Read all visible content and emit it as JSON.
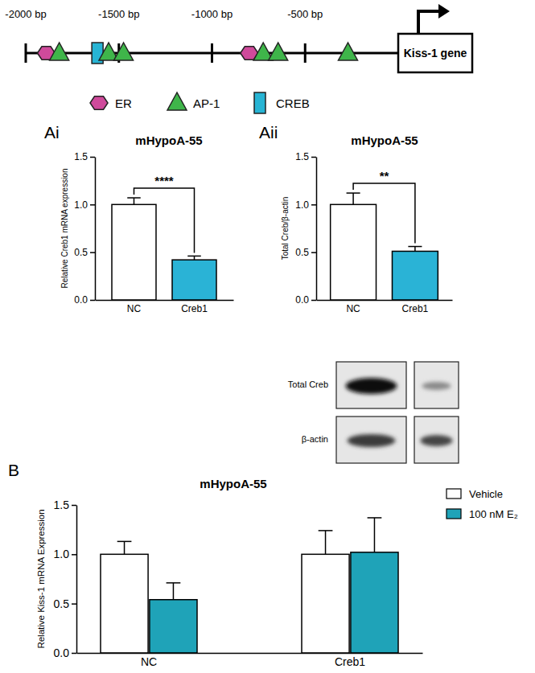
{
  "diagram": {
    "range": [
      -2000,
      0
    ],
    "ticks": [
      {
        "value": -2000,
        "label": "-2000 bp"
      },
      {
        "value": -1500,
        "label": "-1500 bp"
      },
      {
        "value": -1000,
        "label": "-1000 bp"
      },
      {
        "value": -500,
        "label": "-500 bp"
      }
    ],
    "gene": "Kiss-1 gene",
    "sites": [
      {
        "type": "ER",
        "position": -1890
      },
      {
        "type": "AP-1",
        "position": -1820
      },
      {
        "type": "CREB",
        "position": -1615
      },
      {
        "type": "AP-1",
        "position": -1555
      },
      {
        "type": "AP-1",
        "position": -1475
      },
      {
        "type": "ER",
        "position": -800
      },
      {
        "type": "AP-1",
        "position": -725
      },
      {
        "type": "AP-1",
        "position": -645
      },
      {
        "type": "AP-1",
        "position": -270
      }
    ],
    "legend": [
      {
        "label": "ER",
        "shape": "hexagon",
        "color": "#cf4a9b"
      },
      {
        "label": "AP-1",
        "shape": "triangle",
        "color": "#3fb54a"
      },
      {
        "label": "CREB",
        "shape": "rect",
        "color": "#27b4d4"
      }
    ]
  },
  "blot": {
    "rows": [
      "Total Creb",
      "β-actin"
    ]
  },
  "chart_data": [
    {
      "type": "bar",
      "panel": "Ai",
      "title": "mHypoA-55",
      "y_label": "Relative Creb1 mRNA expression",
      "categories": [
        "NC",
        "Creb1"
      ],
      "values": [
        1.0,
        0.42
      ],
      "errors": [
        0.07,
        0.04
      ],
      "colors": [
        "#ffffff",
        "#2ab3d6"
      ],
      "ylim": [
        0,
        1.5
      ],
      "yticks": [
        {
          "value": 0,
          "label": "0.0"
        },
        0.5,
        {
          "value": 1,
          "label": "1.0"
        },
        1.5
      ],
      "annotations": [
        "****"
      ]
    },
    {
      "type": "bar",
      "panel": "Aii",
      "title": "mHypoA-55",
      "y_label": "Total Creb/β-actin",
      "categories": [
        "NC",
        "Creb1"
      ],
      "values": [
        1.0,
        0.51
      ],
      "errors": [
        0.12,
        0.05
      ],
      "colors": [
        "#ffffff",
        "#2ab3d6"
      ],
      "ylim": [
        0,
        1.5
      ],
      "yticks": [
        {
          "value": 0,
          "label": "0.0"
        },
        0.5,
        {
          "value": 1,
          "label": "1.0"
        },
        1.5
      ],
      "annotations": [
        "**"
      ]
    },
    {
      "type": "bar",
      "panel": "B",
      "title": "mHypoA-55",
      "y_label": "Relative Kiss-1 mRNA Expression",
      "categories": [
        "NC",
        "Creb1"
      ],
      "series": [
        {
          "name": "Vehicle",
          "color": "#ffffff",
          "values": [
            1.0,
            1.0
          ],
          "errors": [
            0.13,
            0.24
          ]
        },
        {
          "name": "100 nM E₂",
          "color": "#1fa3b8",
          "values": [
            0.54,
            1.02
          ],
          "errors": [
            0.17,
            0.35
          ]
        }
      ],
      "ylim": [
        0,
        1.5
      ],
      "yticks": [
        {
          "value": 0,
          "label": "0.0"
        },
        0.5,
        {
          "value": 1,
          "label": "1.0"
        },
        1.5
      ],
      "legend": "top-right"
    }
  ]
}
